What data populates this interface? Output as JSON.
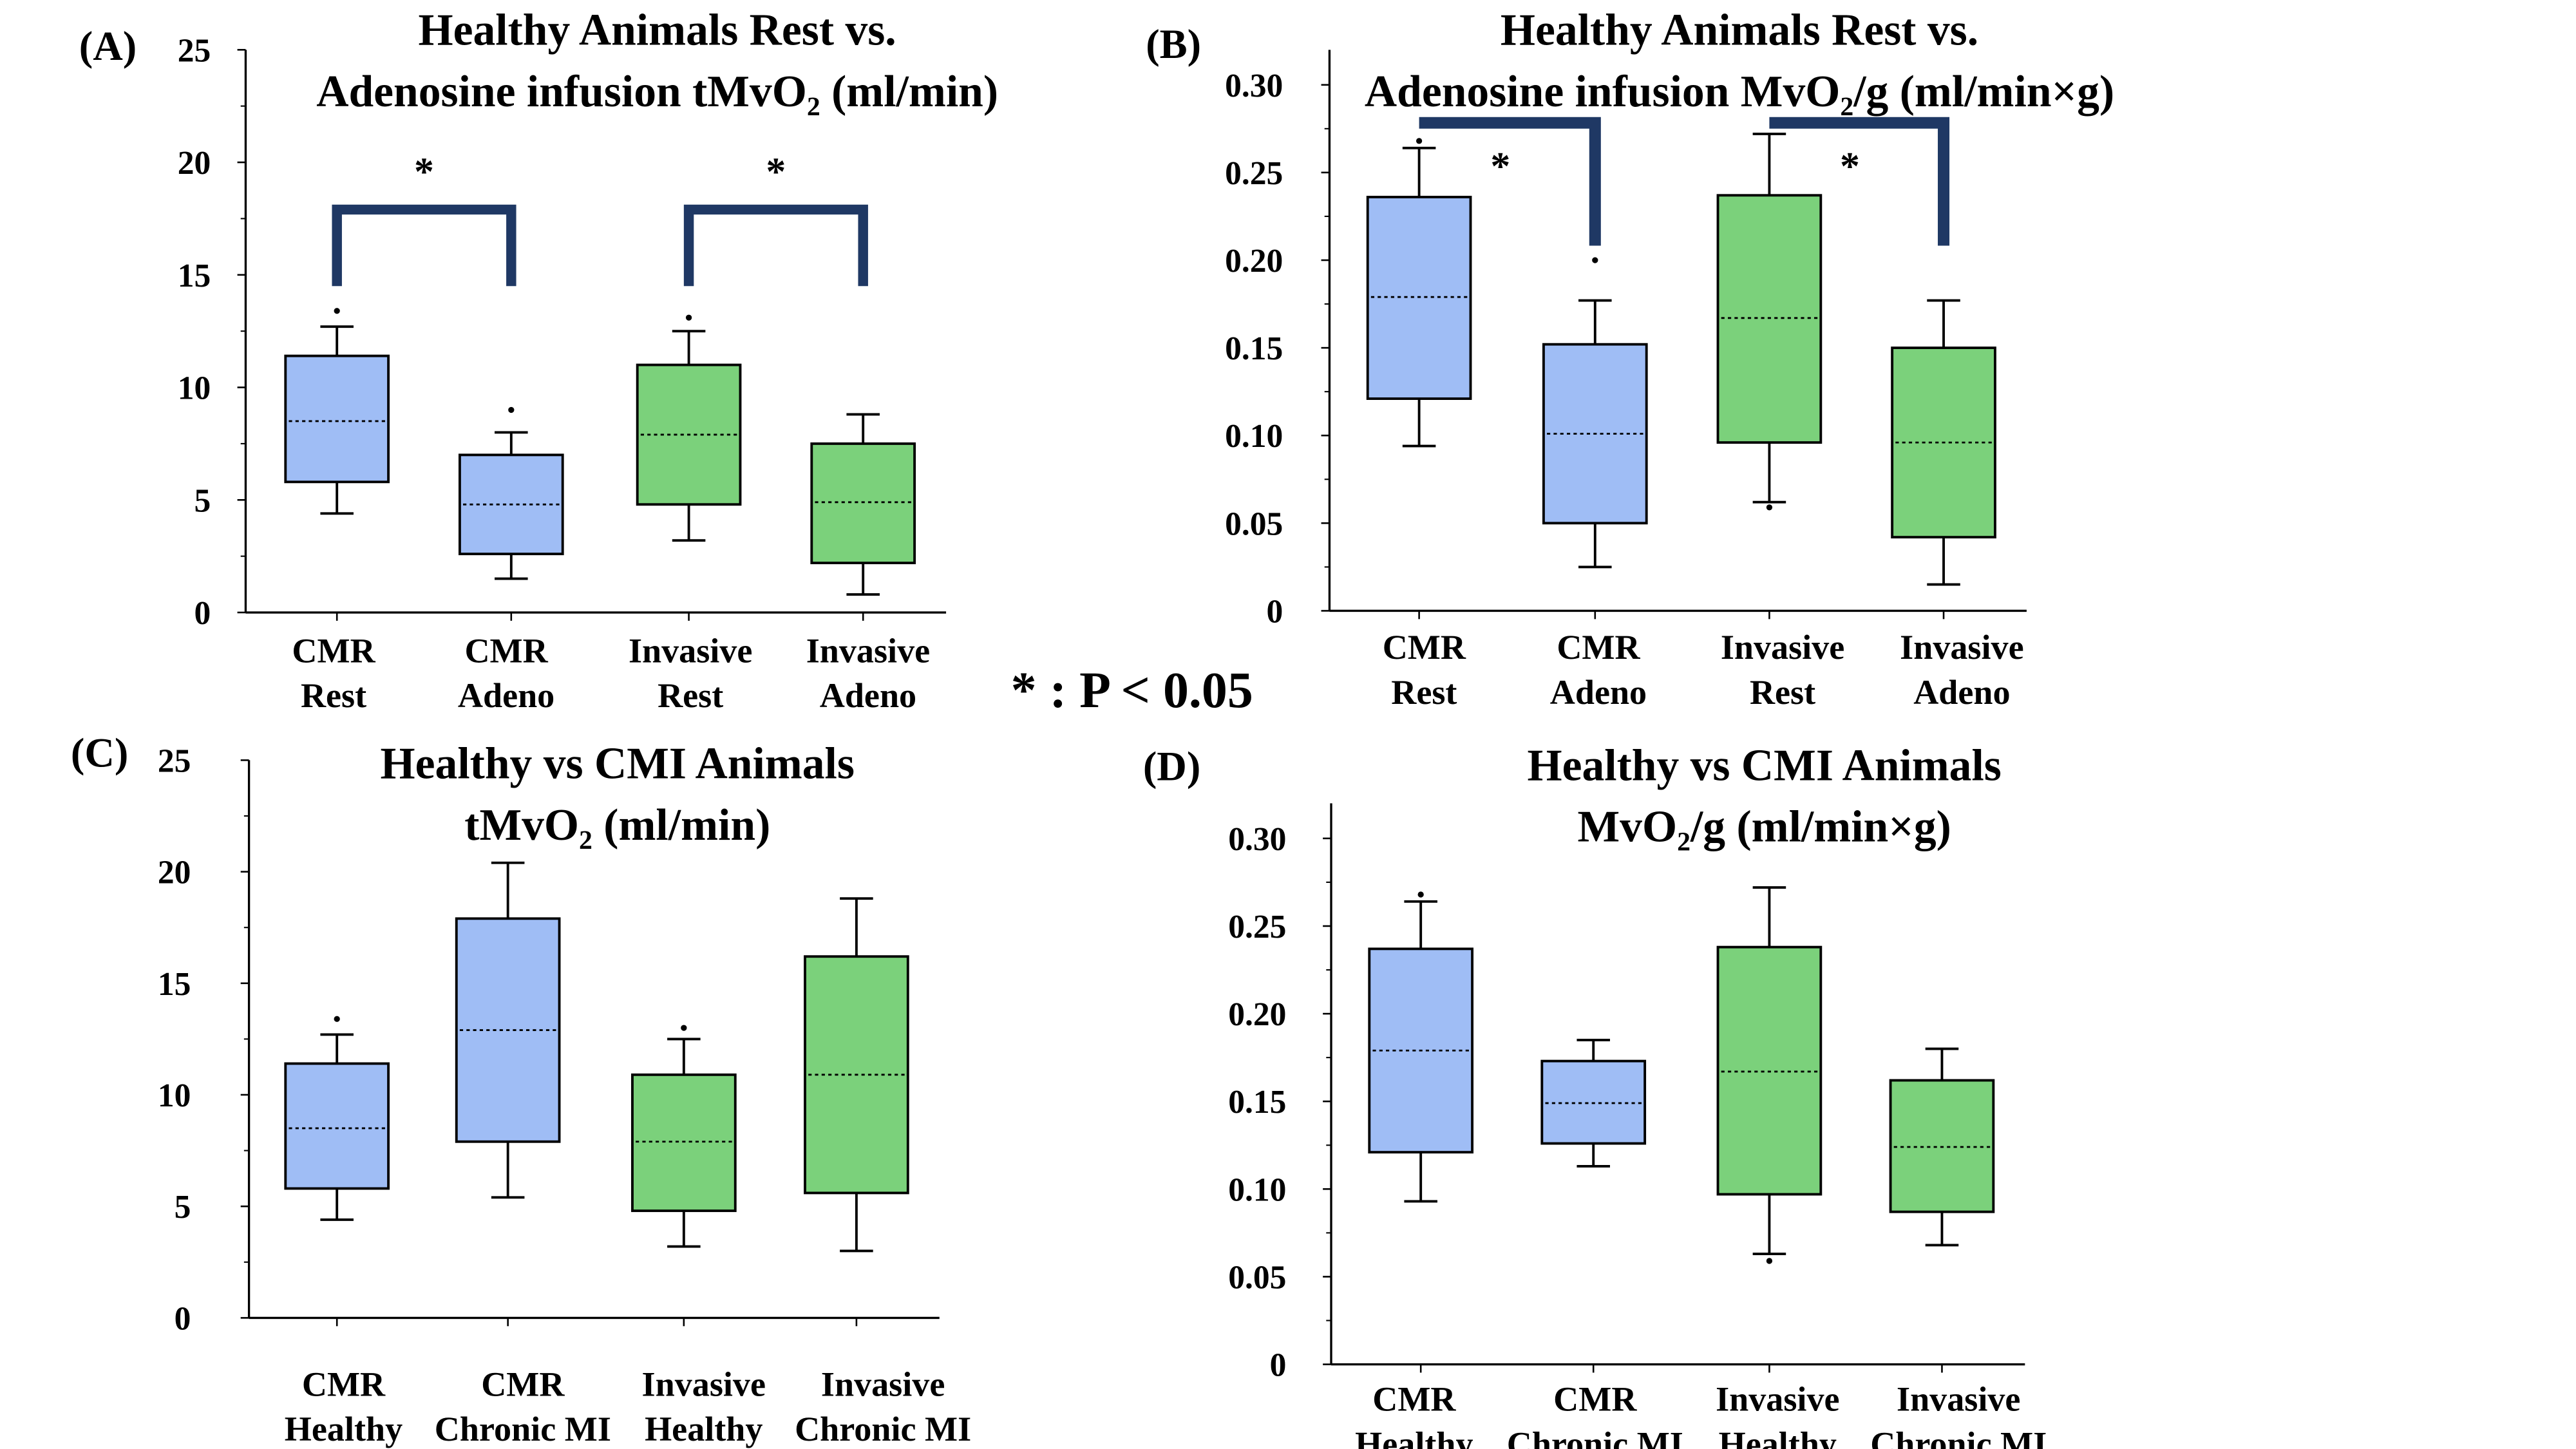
{
  "significance_note": "* : P < 0.05",
  "colors": {
    "cmr_fill": "#9fbdf5",
    "invasive_fill": "#7bd17b",
    "bracket": "#1f3864",
    "stroke": "#000000"
  },
  "chart_data": [
    {
      "panel": "(A)",
      "type": "box",
      "title_lines": [
        "Healthy Animals Rest vs.",
        "Adenosine infusion tMvO₂ (ml/min)"
      ],
      "ylim": [
        0,
        25
      ],
      "yticks": [
        0,
        5,
        10,
        15,
        20,
        25
      ],
      "ytick_labels": [
        "0",
        "5",
        "10",
        "15",
        "20",
        "25"
      ],
      "categories": [
        [
          "CMR",
          "Rest"
        ],
        [
          "CMR",
          "Adeno"
        ],
        [
          "Invasive",
          "Rest"
        ],
        [
          "Invasive",
          "Adeno"
        ]
      ],
      "groups": [
        "CMR",
        "CMR",
        "Invasive",
        "Invasive"
      ],
      "boxes": [
        {
          "min": 4.4,
          "q1": 5.8,
          "median": 8.5,
          "q3": 11.4,
          "max": 12.7,
          "outliers": [
            13.4
          ]
        },
        {
          "min": 1.5,
          "q1": 2.6,
          "median": 4.8,
          "q3": 7.0,
          "max": 8.0,
          "outliers": [
            9.0
          ]
        },
        {
          "min": 3.2,
          "q1": 4.8,
          "median": 7.9,
          "q3": 11.0,
          "max": 12.5,
          "outliers": [
            13.1
          ]
        },
        {
          "min": 0.8,
          "q1": 2.2,
          "median": 4.9,
          "q3": 7.5,
          "max": 8.8,
          "outliers": []
        }
      ],
      "brackets": [
        {
          "from": 0,
          "to": 1,
          "y": 17.9,
          "label": "*"
        },
        {
          "from": 2,
          "to": 3,
          "y": 17.9,
          "label": "*"
        }
      ]
    },
    {
      "panel": "(B)",
      "type": "box",
      "title_lines": [
        "Healthy Animals Rest vs.",
        "Adenosine infusion MvO₂/g (ml/min×g)"
      ],
      "ylim": [
        0,
        0.32
      ],
      "yticks": [
        0,
        0.05,
        0.1,
        0.15,
        0.2,
        0.25,
        0.3
      ],
      "ytick_labels": [
        "0",
        "0.05",
        "0.10",
        "0.15",
        "0.20",
        "0.25",
        "0.30"
      ],
      "categories": [
        [
          "CMR",
          "Rest"
        ],
        [
          "CMR",
          "Adeno"
        ],
        [
          "Invasive",
          "Rest"
        ],
        [
          "Invasive",
          "Adeno"
        ]
      ],
      "groups": [
        "CMR",
        "CMR",
        "Invasive",
        "Invasive"
      ],
      "boxes": [
        {
          "min": 0.094,
          "q1": 0.121,
          "median": 0.179,
          "q3": 0.236,
          "max": 0.264,
          "outliers": [
            0.268
          ]
        },
        {
          "min": 0.025,
          "q1": 0.05,
          "median": 0.101,
          "q3": 0.152,
          "max": 0.177,
          "outliers": [
            0.2
          ]
        },
        {
          "min": 0.062,
          "q1": 0.096,
          "median": 0.167,
          "q3": 0.237,
          "max": 0.272,
          "outliers": [
            0.059
          ]
        },
        {
          "min": 0.015,
          "q1": 0.042,
          "median": 0.096,
          "q3": 0.15,
          "max": 0.177,
          "outliers": []
        }
      ],
      "brackets": [
        {
          "from": 0,
          "to": 1,
          "y": 0.28,
          "label": "*"
        },
        {
          "from": 2,
          "to": 3,
          "y": 0.28,
          "label": "*"
        }
      ]
    },
    {
      "panel": "(C)",
      "type": "box",
      "title_lines": [
        "Healthy vs CMI Animals",
        "tMvO₂ (ml/min)"
      ],
      "ylim": [
        0,
        25
      ],
      "yticks": [
        0,
        5,
        10,
        15,
        20,
        25
      ],
      "ytick_labels": [
        "0",
        "5",
        "10",
        "15",
        "20",
        "25"
      ],
      "categories": [
        [
          "CMR",
          "Healthy"
        ],
        [
          "CMR",
          "Chronic MI"
        ],
        [
          "Invasive",
          "Healthy"
        ],
        [
          "Invasive",
          "Chronic MI"
        ]
      ],
      "groups": [
        "CMR",
        "CMR",
        "Invasive",
        "Invasive"
      ],
      "boxes": [
        {
          "min": 4.4,
          "q1": 5.8,
          "median": 8.5,
          "q3": 11.4,
          "max": 12.7,
          "outliers": [
            13.4
          ]
        },
        {
          "min": 5.4,
          "q1": 7.9,
          "median": 12.9,
          "q3": 17.9,
          "max": 20.4,
          "outliers": []
        },
        {
          "min": 3.2,
          "q1": 4.8,
          "median": 7.9,
          "q3": 10.9,
          "max": 12.5,
          "outliers": [
            13.0
          ]
        },
        {
          "min": 3.0,
          "q1": 5.6,
          "median": 10.9,
          "q3": 16.2,
          "max": 18.8,
          "outliers": []
        }
      ],
      "brackets": []
    },
    {
      "panel": "(D)",
      "type": "box",
      "title_lines": [
        "Healthy vs CMI Animals",
        "MvO₂/g (ml/min×g)"
      ],
      "ylim": [
        0,
        0.32
      ],
      "yticks": [
        0,
        0.05,
        0.1,
        0.15,
        0.2,
        0.25,
        0.3
      ],
      "ytick_labels": [
        "0",
        "0.05",
        "0.10",
        "0.15",
        "0.20",
        "0.25",
        "0.30"
      ],
      "categories": [
        [
          "CMR",
          "Healthy"
        ],
        [
          "CMR",
          "Chronic MI"
        ],
        [
          "Invasive",
          "Healthy"
        ],
        [
          "Invasive",
          "Chronic MI"
        ]
      ],
      "groups": [
        "CMR",
        "CMR",
        "Invasive",
        "Invasive"
      ],
      "boxes": [
        {
          "min": 0.093,
          "q1": 0.121,
          "median": 0.179,
          "q3": 0.237,
          "max": 0.264,
          "outliers": [
            0.268
          ]
        },
        {
          "min": 0.113,
          "q1": 0.126,
          "median": 0.149,
          "q3": 0.173,
          "max": 0.185,
          "outliers": []
        },
        {
          "min": 0.063,
          "q1": 0.097,
          "median": 0.167,
          "q3": 0.238,
          "max": 0.272,
          "outliers": [
            0.059
          ]
        },
        {
          "min": 0.068,
          "q1": 0.087,
          "median": 0.124,
          "q3": 0.162,
          "max": 0.18,
          "outliers": []
        }
      ],
      "brackets": []
    }
  ]
}
